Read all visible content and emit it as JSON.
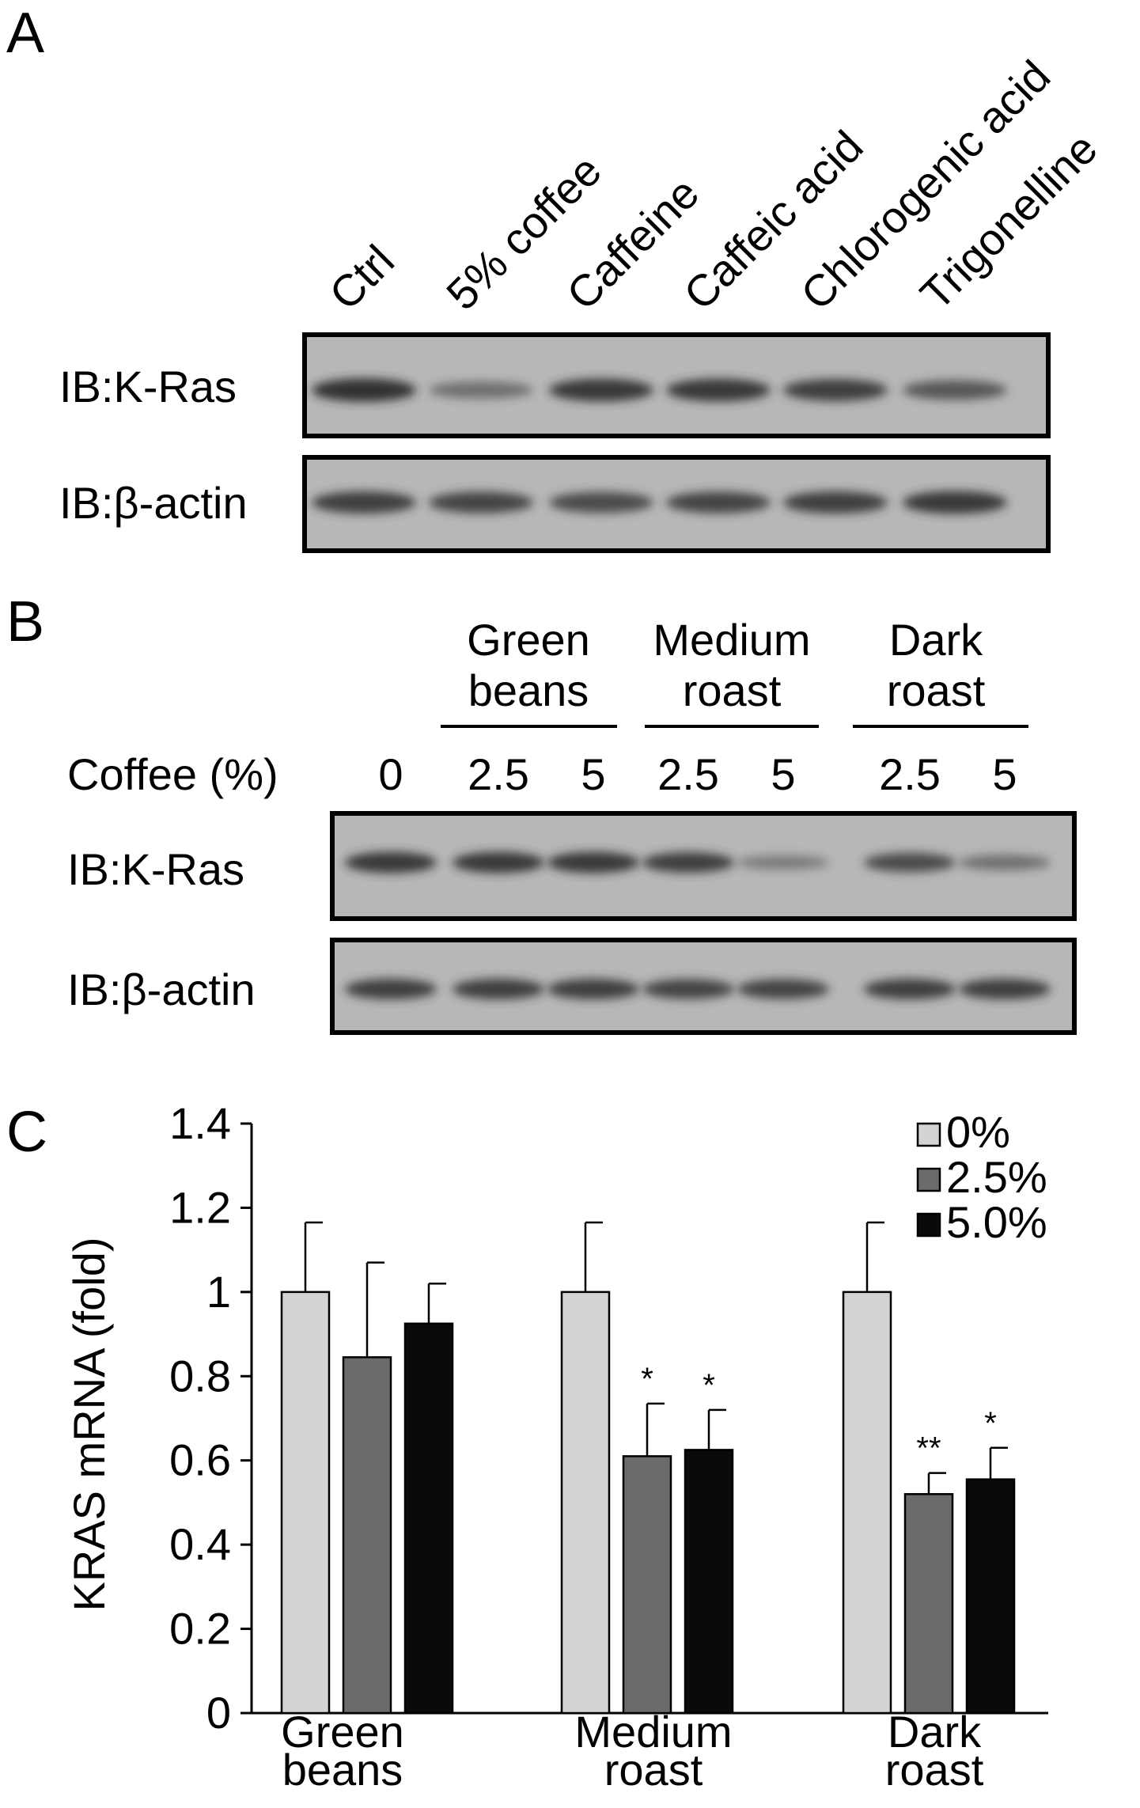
{
  "panelA": {
    "letter": "A",
    "lanes": [
      "Ctrl",
      "5% coffee",
      "Caffeine",
      "Caffeic acid",
      "Chlorogenic acid",
      "Trigonelline"
    ],
    "rows": [
      {
        "label": "IB:K-Ras",
        "intensity": [
          0.85,
          0.35,
          0.8,
          0.8,
          0.75,
          0.55
        ]
      },
      {
        "label": "IB:β-actin",
        "intensity": [
          0.75,
          0.7,
          0.65,
          0.7,
          0.75,
          0.8
        ]
      }
    ]
  },
  "panelB": {
    "letter": "B",
    "groups": [
      {
        "label_lines": [
          "Green",
          "beans"
        ]
      },
      {
        "label_lines": [
          "Medium",
          "roast"
        ]
      },
      {
        "label_lines": [
          "Dark",
          "roast"
        ]
      }
    ],
    "row_label": "Coffee (%)",
    "lane_values": [
      "0",
      "2.5",
      "5",
      "2.5",
      "5",
      "2.5",
      "5"
    ],
    "rows": [
      {
        "label": "IB:K-Ras",
        "intensity": [
          0.8,
          0.8,
          0.8,
          0.75,
          0.25,
          0.65,
          0.35
        ]
      },
      {
        "label": "IB:β-actin",
        "intensity": [
          0.75,
          0.75,
          0.75,
          0.7,
          0.7,
          0.75,
          0.75
        ]
      }
    ]
  },
  "panelC": {
    "letter": "C",
    "chart_data": {
      "type": "bar",
      "categories": [
        [
          "Green",
          "beans"
        ],
        [
          "Medium",
          "roast"
        ],
        [
          "Dark",
          "roast"
        ]
      ],
      "series": [
        {
          "name": "0%",
          "color": "#d3d3d3",
          "values": [
            1.0,
            1.0,
            1.0
          ],
          "errors": [
            0.165,
            0.165,
            0.165
          ],
          "sig": [
            "",
            "",
            ""
          ]
        },
        {
          "name": "2.5%",
          "color": "#6b6b6b",
          "values": [
            0.845,
            0.61,
            0.52
          ],
          "errors": [
            0.225,
            0.125,
            0.05
          ],
          "sig": [
            "",
            "*",
            "**"
          ]
        },
        {
          "name": "5.0%",
          "color": "#0a0a0a",
          "values": [
            0.925,
            0.625,
            0.555
          ],
          "errors": [
            0.095,
            0.095,
            0.075
          ],
          "sig": [
            "",
            "*",
            "*"
          ]
        }
      ],
      "ylabel": "KRAS mRNA (fold)",
      "ylim": [
        0,
        1.4
      ],
      "yticks": [
        {
          "v": 0,
          "t": "0"
        },
        {
          "v": 0.2,
          "t": "0.2"
        },
        {
          "v": 0.4,
          "t": "0.4"
        },
        {
          "v": 0.6,
          "t": "0.6"
        },
        {
          "v": 0.8,
          "t": "0.8"
        },
        {
          "v": 1.0,
          "t": "1"
        },
        {
          "v": 1.2,
          "t": "1.2"
        },
        {
          "v": 1.4,
          "t": "1.4"
        }
      ],
      "legend_position": "top-right"
    }
  }
}
